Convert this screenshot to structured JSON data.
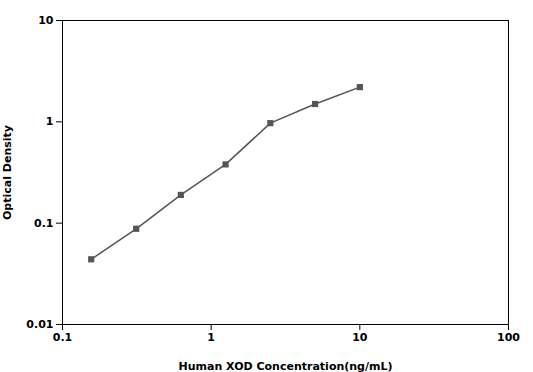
{
  "chart_data": {
    "type": "line",
    "x": [
      0.156,
      0.313,
      0.625,
      1.25,
      2.5,
      5,
      10
    ],
    "values": [
      0.044,
      0.088,
      0.19,
      0.38,
      0.97,
      1.5,
      2.2
    ],
    "xlabel": "Human XOD Concentration(ng/mL)",
    "ylabel": "Optical Density",
    "xlim": [
      0.1,
      100
    ],
    "ylim": [
      0.01,
      10
    ],
    "xticks": [
      0.1,
      1,
      10,
      100
    ],
    "yticks": [
      0.01,
      0.1,
      1,
      10
    ],
    "log": true,
    "grid": false,
    "color": "#555555",
    "marker": "square"
  }
}
